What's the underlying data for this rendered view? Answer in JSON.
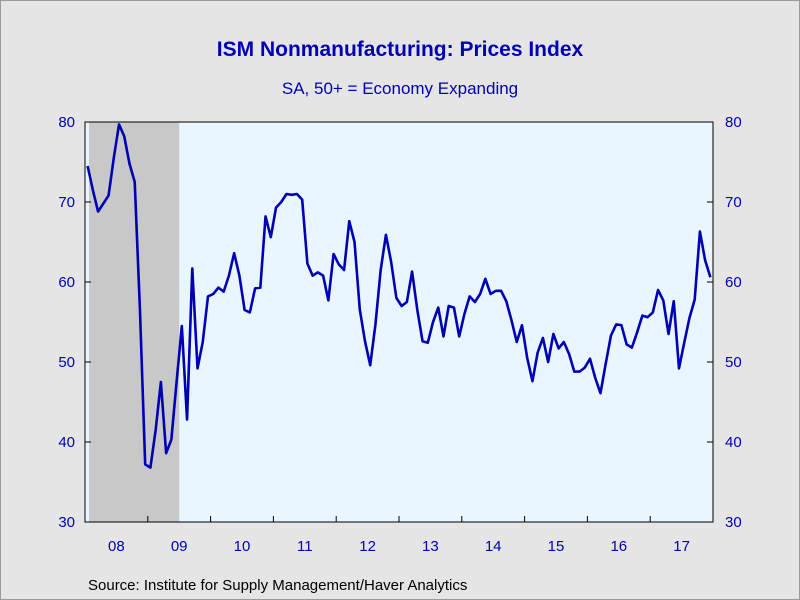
{
  "chart_data": {
    "type": "line",
    "title": "ISM Nonmanufacturing: Prices Index",
    "subtitle": "SA, 50+ = Economy Expanding",
    "source": "Source:  Institute for Supply Management/Haver Analytics",
    "xlabel": "",
    "ylabel": "",
    "ylim": [
      30,
      80
    ],
    "y_ticks": [
      "30",
      "40",
      "50",
      "60",
      "70",
      "80"
    ],
    "x_tick_labels": [
      "08",
      "09",
      "10",
      "11",
      "12",
      "13",
      "14",
      "15",
      "16",
      "17"
    ],
    "x_range": [
      "2008-01",
      "2017-12"
    ],
    "grid": false,
    "legend": "none",
    "axes": "dual y-axes, identical scale",
    "recession_shading": {
      "start": "2008-01",
      "end": "2009-06",
      "color": "#c8c8c8"
    },
    "plot_background": "#eaf6ff",
    "line_color": "#0000b4",
    "text_color": "#0000b4",
    "series": [
      {
        "points": [
          [
            "2008-01",
            74.5
          ],
          [
            "2008-02",
            71.5
          ],
          [
            "2008-03",
            68.8
          ],
          [
            "2008-04",
            69.8
          ],
          [
            "2008-05",
            70.8
          ],
          [
            "2008-06",
            75.5
          ],
          [
            "2008-07",
            79.7
          ],
          [
            "2008-08",
            78.2
          ],
          [
            "2008-09",
            74.8
          ],
          [
            "2008-10",
            72.5
          ],
          [
            "2008-11",
            56.5
          ],
          [
            "2008-12",
            37.2
          ],
          [
            "2009-01",
            36.8
          ],
          [
            "2009-02",
            41.5
          ],
          [
            "2009-03",
            47.5
          ],
          [
            "2009-04",
            38.6
          ],
          [
            "2009-05",
            40.3
          ],
          [
            "2009-06",
            47.5
          ],
          [
            "2009-07",
            54.5
          ],
          [
            "2009-08",
            42.8
          ],
          [
            "2009-09",
            61.7
          ],
          [
            "2009-10",
            49.2
          ],
          [
            "2009-11",
            52.5
          ],
          [
            "2009-12",
            58.2
          ],
          [
            "2010-01",
            58.5
          ],
          [
            "2010-02",
            59.3
          ],
          [
            "2010-03",
            58.8
          ],
          [
            "2010-04",
            60.8
          ],
          [
            "2010-05",
            63.6
          ],
          [
            "2010-06",
            60.8
          ],
          [
            "2010-07",
            56.5
          ],
          [
            "2010-08",
            56.2
          ],
          [
            "2010-09",
            59.2
          ],
          [
            "2010-10",
            59.3
          ],
          [
            "2010-11",
            68.2
          ],
          [
            "2010-12",
            65.6
          ],
          [
            "2011-01",
            69.3
          ],
          [
            "2011-02",
            70.0
          ],
          [
            "2011-03",
            71.0
          ],
          [
            "2011-04",
            70.9
          ],
          [
            "2011-05",
            71.0
          ],
          [
            "2011-06",
            70.3
          ],
          [
            "2011-07",
            62.3
          ],
          [
            "2011-08",
            60.8
          ],
          [
            "2011-09",
            61.2
          ],
          [
            "2011-10",
            60.8
          ],
          [
            "2011-11",
            57.7
          ],
          [
            "2011-12",
            63.5
          ],
          [
            "2012-01",
            62.2
          ],
          [
            "2012-02",
            61.5
          ],
          [
            "2012-03",
            67.6
          ],
          [
            "2012-04",
            65.0
          ],
          [
            "2012-05",
            56.6
          ],
          [
            "2012-06",
            52.6
          ],
          [
            "2012-07",
            49.6
          ],
          [
            "2012-08",
            54.7
          ],
          [
            "2012-09",
            61.5
          ],
          [
            "2012-10",
            65.9
          ],
          [
            "2012-11",
            62.5
          ],
          [
            "2012-12",
            58.0
          ],
          [
            "2013-01",
            57.0
          ],
          [
            "2013-02",
            57.5
          ],
          [
            "2013-03",
            61.3
          ],
          [
            "2013-04",
            56.5
          ],
          [
            "2013-05",
            52.6
          ],
          [
            "2013-06",
            52.4
          ],
          [
            "2013-07",
            55.0
          ],
          [
            "2013-08",
            56.8
          ],
          [
            "2013-09",
            53.2
          ],
          [
            "2013-10",
            57.0
          ],
          [
            "2013-11",
            56.8
          ],
          [
            "2013-12",
            53.2
          ],
          [
            "2014-01",
            56.0
          ],
          [
            "2014-02",
            58.2
          ],
          [
            "2014-03",
            57.5
          ],
          [
            "2014-04",
            58.5
          ],
          [
            "2014-05",
            60.4
          ],
          [
            "2014-06",
            58.5
          ],
          [
            "2014-07",
            58.9
          ],
          [
            "2014-08",
            58.9
          ],
          [
            "2014-09",
            57.6
          ],
          [
            "2014-10",
            55.2
          ],
          [
            "2014-11",
            52.5
          ],
          [
            "2014-12",
            54.6
          ],
          [
            "2015-01",
            50.5
          ],
          [
            "2015-02",
            47.6
          ],
          [
            "2015-03",
            51.2
          ],
          [
            "2015-04",
            53.0
          ],
          [
            "2015-05",
            50.0
          ],
          [
            "2015-06",
            53.5
          ],
          [
            "2015-07",
            51.7
          ],
          [
            "2015-08",
            52.5
          ],
          [
            "2015-09",
            51.0
          ],
          [
            "2015-10",
            48.8
          ],
          [
            "2015-11",
            48.8
          ],
          [
            "2015-12",
            49.3
          ],
          [
            "2016-01",
            50.4
          ],
          [
            "2016-02",
            48.0
          ],
          [
            "2016-03",
            46.1
          ],
          [
            "2016-04",
            49.8
          ],
          [
            "2016-05",
            53.3
          ],
          [
            "2016-06",
            54.7
          ],
          [
            "2016-07",
            54.6
          ],
          [
            "2016-08",
            52.2
          ],
          [
            "2016-09",
            51.8
          ],
          [
            "2016-10",
            53.7
          ],
          [
            "2016-11",
            55.8
          ],
          [
            "2016-12",
            55.6
          ],
          [
            "2017-01",
            56.2
          ],
          [
            "2017-02",
            59.0
          ],
          [
            "2017-03",
            57.7
          ],
          [
            "2017-04",
            53.5
          ],
          [
            "2017-05",
            57.6
          ],
          [
            "2017-06",
            49.2
          ],
          [
            "2017-07",
            52.4
          ],
          [
            "2017-08",
            55.5
          ],
          [
            "2017-09",
            57.8
          ],
          [
            "2017-10",
            66.3
          ],
          [
            "2017-11",
            62.7
          ],
          [
            "2017-12",
            60.6
          ]
        ]
      }
    ]
  }
}
